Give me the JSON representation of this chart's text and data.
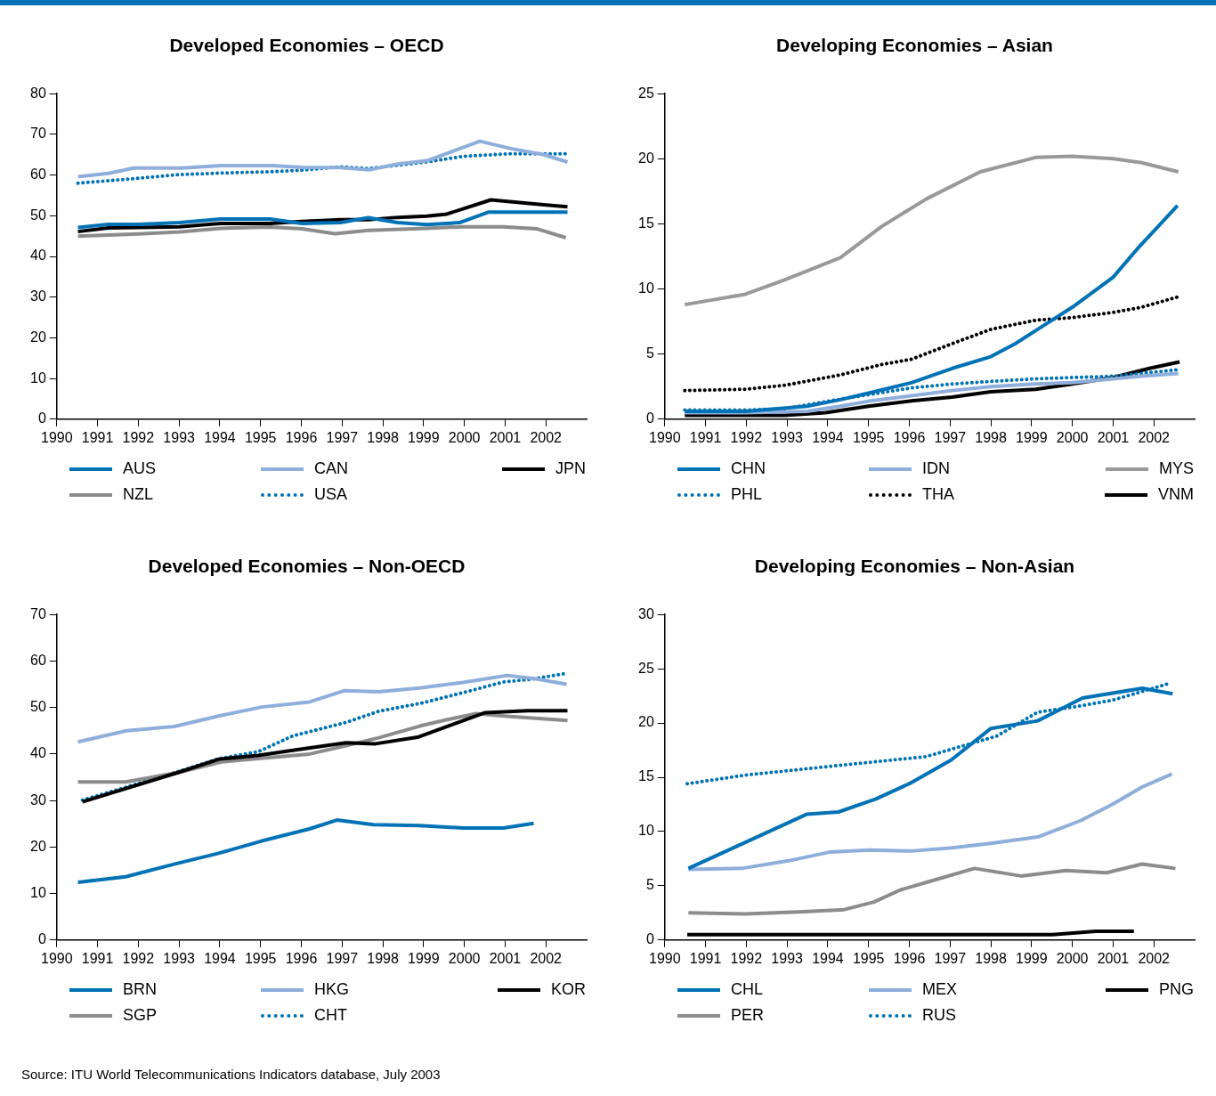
{
  "chart_data": [
    {
      "type": "line",
      "title": "Developed Economies – OECD",
      "xlim": [
        1990,
        2003
      ],
      "xticks": [
        1990,
        1991,
        1992,
        1993,
        1994,
        1995,
        1996,
        1997,
        1998,
        1999,
        2000,
        2001,
        2002
      ],
      "ylim": [
        0,
        80
      ],
      "yticks": [
        0,
        10,
        20,
        30,
        40,
        50,
        60,
        70,
        80
      ],
      "grid": false,
      "legend": "bottom",
      "marker": "none",
      "series": [
        {
          "name": "AUS",
          "color": "#0072b5",
          "line_style": "solid",
          "x": [
            1990.52,
            1991.26,
            1992.0,
            1993.01,
            1994.02,
            1995.23,
            1996.02,
            1996.96,
            1997.64,
            1998.36,
            1999.08,
            1999.88,
            2000.6,
            2002.53
          ],
          "values": [
            47.1,
            47.9,
            47.9,
            48.3,
            49.2,
            49.2,
            48.1,
            48.3,
            49.5,
            48.3,
            47.8,
            48.3,
            50.9,
            50.9
          ]
        },
        {
          "name": "CAN",
          "color": "#8eaedb",
          "line_style": "solid",
          "x": [
            1990.52,
            1991.26,
            1991.89,
            1993.06,
            1994.04,
            1995.3,
            1996.02,
            1996.96,
            1997.68,
            1998.36,
            1999.08,
            2000.38,
            2001.14,
            2001.95,
            2002.53
          ],
          "values": [
            59.6,
            60.4,
            61.7,
            61.7,
            62.3,
            62.3,
            61.9,
            61.8,
            61.3,
            62.7,
            63.5,
            68.3,
            66.5,
            65.0,
            63.2
          ]
        },
        {
          "name": "JPN",
          "color": "#000000",
          "line_style": "solid",
          "x": [
            1990.52,
            1991.26,
            1992.0,
            1993.01,
            1994.02,
            1995.23,
            1996.02,
            1996.96,
            1997.64,
            1998.36,
            1999.08,
            1999.57,
            2000.65,
            2001.95,
            2002.53
          ],
          "values": [
            46.1,
            47.0,
            47.1,
            47.3,
            48.1,
            48.1,
            48.6,
            49.0,
            49.0,
            49.6,
            49.9,
            50.4,
            53.9,
            52.7,
            52.2
          ]
        },
        {
          "name": "NZL",
          "color": "#8c8c8c",
          "line_style": "solid",
          "x": [
            1990.52,
            1992.0,
            1993.01,
            1994.02,
            1995.23,
            1996.02,
            1996.83,
            1997.64,
            1999.08,
            1999.97,
            2000.96,
            2001.77,
            2002.49
          ],
          "values": [
            45.0,
            45.5,
            46.0,
            46.9,
            47.2,
            46.8,
            45.6,
            46.4,
            46.9,
            47.3,
            47.3,
            46.8,
            44.6
          ]
        },
        {
          "name": "USA",
          "color": "#0072b5",
          "line_style": "dotted",
          "x": [
            1990.52,
            1992.0,
            1993.01,
            1994.02,
            1995.23,
            1996.02,
            1996.96,
            1997.64,
            1999.08,
            1999.97,
            2001.05,
            2002.53
          ],
          "values": [
            58.0,
            59.2,
            60.1,
            60.5,
            60.8,
            61.2,
            62.0,
            61.6,
            63.2,
            64.6,
            65.2,
            65.2
          ]
        }
      ]
    },
    {
      "type": "line",
      "title": "Developing Economies – Asian",
      "xlim": [
        1990,
        2003
      ],
      "xticks": [
        1990,
        1991,
        1992,
        1993,
        1994,
        1995,
        1996,
        1997,
        1998,
        1999,
        2000,
        2001,
        2002
      ],
      "ylim": [
        0,
        25
      ],
      "yticks": [
        0,
        5,
        10,
        15,
        20,
        25
      ],
      "grid": false,
      "legend": "bottom",
      "marker": "none",
      "series": [
        {
          "name": "CHN",
          "color": "#0072b5",
          "line_style": "solid",
          "x": [
            1990.49,
            1991.98,
            1993.49,
            1994.31,
            1995.0,
            1996.05,
            1997.05,
            1998.0,
            1998.6,
            1999.15,
            2000.0,
            2001.0,
            2001.6,
            2002.58
          ],
          "values": [
            0.6,
            0.6,
            1.0,
            1.5,
            2.0,
            2.8,
            3.9,
            4.8,
            5.8,
            6.9,
            8.6,
            10.9,
            13.1,
            16.4
          ]
        },
        {
          "name": "IDN",
          "color": "#8eaedb",
          "line_style": "solid",
          "x": [
            1990.49,
            1991.98,
            1993.49,
            1994.31,
            1995.05,
            1996.05,
            1997.05,
            1998.0,
            1999.1,
            2000.0,
            2001.0,
            2001.7,
            2002.6
          ],
          "values": [
            0.5,
            0.5,
            0.6,
            1.0,
            1.4,
            1.8,
            2.2,
            2.5,
            2.7,
            2.8,
            3.1,
            3.3,
            3.5
          ]
        },
        {
          "name": "MYS",
          "color": "#999999",
          "line_style": "solid",
          "x": [
            1990.49,
            1991.98,
            1992.94,
            1994.31,
            1995.32,
            1996.41,
            1997.74,
            1999.1,
            2000.0,
            2001.0,
            2001.7,
            2002.6
          ],
          "values": [
            8.8,
            9.6,
            10.7,
            12.4,
            14.8,
            16.9,
            19.0,
            20.1,
            20.2,
            20.0,
            19.7,
            19.0
          ]
        },
        {
          "name": "PHL",
          "color": "#0072b5",
          "line_style": "dotted",
          "x": [
            1990.49,
            1991.98,
            1992.94,
            1994.04,
            1995.04,
            1996.05,
            1997.05,
            1998.0,
            1999.1,
            2000.0,
            2001.0,
            2002.6
          ],
          "values": [
            0.7,
            0.7,
            0.8,
            1.4,
            1.9,
            2.4,
            2.7,
            2.9,
            3.1,
            3.2,
            3.3,
            3.8
          ]
        },
        {
          "name": "THA",
          "color": "#000000",
          "line_style": "dotted",
          "x": [
            1990.49,
            1991.98,
            1992.94,
            1994.31,
            1995.32,
            1996.05,
            1997.05,
            1998.0,
            1999.1,
            2000.0,
            2001.0,
            2001.7,
            2002.6
          ],
          "values": [
            2.2,
            2.3,
            2.6,
            3.4,
            4.2,
            4.6,
            5.8,
            6.9,
            7.6,
            7.8,
            8.2,
            8.6,
            9.4
          ]
        },
        {
          "name": "VNM",
          "color": "#000000",
          "line_style": "solid",
          "x": [
            1990.49,
            1992.94,
            1993.95,
            1995.0,
            1996.05,
            1997.05,
            1998.0,
            1999.1,
            2000.0,
            2001.0,
            2001.89,
            2002.63
          ],
          "values": [
            0.3,
            0.3,
            0.5,
            1.0,
            1.4,
            1.7,
            2.1,
            2.3,
            2.7,
            3.2,
            3.9,
            4.4
          ]
        }
      ]
    },
    {
      "type": "line",
      "title": "Developed Economies – Non-OECD",
      "xlim": [
        1990,
        2003
      ],
      "xticks": [
        1990,
        1991,
        1992,
        1993,
        1994,
        1995,
        1996,
        1997,
        1998,
        1999,
        2000,
        2001,
        2002
      ],
      "ylim": [
        0,
        70
      ],
      "yticks": [
        0,
        10,
        20,
        30,
        40,
        50,
        60,
        70
      ],
      "grid": false,
      "legend": "bottom",
      "marker": "none",
      "series": [
        {
          "name": "BRN",
          "color": "#0072b5",
          "line_style": "solid",
          "x": [
            1990.52,
            1991.69,
            1992.92,
            1993.95,
            1995.03,
            1996.2,
            1996.87,
            1997.77,
            1998.9,
            1999.97,
            2000.96,
            2001.7
          ],
          "values": [
            12.4,
            13.6,
            16.4,
            18.6,
            21.3,
            23.9,
            25.8,
            24.8,
            24.6,
            24.1,
            24.1,
            25.1
          ]
        },
        {
          "name": "HKG",
          "color": "#8eaedb",
          "line_style": "solid",
          "x": [
            1990.52,
            1991.71,
            1992.88,
            1994.04,
            1995.03,
            1996.2,
            1997.05,
            1997.9,
            1998.9,
            1999.97,
            2001.05,
            2001.73,
            2002.51
          ],
          "values": [
            42.6,
            45.0,
            45.9,
            48.3,
            50.1,
            51.2,
            53.6,
            53.4,
            54.2,
            55.4,
            56.9,
            56.2,
            55.0
          ]
        },
        {
          "name": "KOR",
          "color": "#000000",
          "line_style": "solid",
          "x": [
            1990.63,
            1992.97,
            1993.98,
            1994.94,
            1995.79,
            1997.1,
            1997.82,
            1998.85,
            1999.97,
            2000.51,
            2001.55,
            2002.53
          ],
          "values": [
            29.7,
            36.0,
            38.9,
            39.7,
            40.8,
            42.4,
            42.2,
            43.6,
            47.2,
            48.9,
            49.3,
            49.3
          ]
        },
        {
          "name": "SGP",
          "color": "#8c8c8c",
          "line_style": "solid",
          "x": [
            1990.52,
            1991.69,
            1992.97,
            1994.04,
            1994.94,
            1996.2,
            1997.1,
            1997.9,
            1998.9,
            1999.53,
            2000.29,
            2001.05,
            2002.53
          ],
          "values": [
            34.0,
            34.0,
            36.0,
            38.3,
            39.0,
            40.0,
            41.8,
            43.5,
            46.0,
            47.3,
            48.7,
            48.1,
            47.2
          ]
        },
        {
          "name": "CHT",
          "color": "#0072b5",
          "line_style": "dotted",
          "x": [
            1990.63,
            1991.71,
            1992.97,
            1993.98,
            1994.94,
            1995.79,
            1997.1,
            1997.9,
            1998.98,
            1999.97,
            2000.96,
            2001.59,
            2002.47
          ],
          "values": [
            30.1,
            32.9,
            36.2,
            39.0,
            40.5,
            43.9,
            46.8,
            49.2,
            51.0,
            53.2,
            55.5,
            56.0,
            57.3
          ]
        }
      ]
    },
    {
      "type": "line",
      "title": "Developing Economies – Non-Asian",
      "xlim": [
        1990,
        2003
      ],
      "xticks": [
        1990,
        1991,
        1992,
        1993,
        1994,
        1995,
        1996,
        1997,
        1998,
        1999,
        2000,
        2001,
        2002
      ],
      "ylim": [
        0,
        30
      ],
      "yticks": [
        0,
        5,
        10,
        15,
        20,
        25,
        30
      ],
      "grid": false,
      "legend": "bottom",
      "marker": "none",
      "annotations": [
        "Source: ITU World Telecommunications Indicators database, July 2003"
      ],
      "series": [
        {
          "name": "CHL",
          "color": "#0072b5",
          "line_style": "solid",
          "x": [
            1990.58,
            1993.49,
            1994.26,
            1995.18,
            1996.05,
            1997.03,
            1998.0,
            1999.15,
            2000.25,
            2001.71,
            2002.46
          ],
          "values": [
            6.6,
            11.6,
            11.8,
            13.0,
            14.5,
            16.6,
            19.5,
            20.2,
            22.3,
            23.2,
            22.7
          ]
        },
        {
          "name": "MEX",
          "color": "#8eaedb",
          "line_style": "solid",
          "x": [
            1990.58,
            1991.89,
            1993.03,
            1994.04,
            1995.04,
            1996.05,
            1997.05,
            1998.0,
            1999.15,
            2000.2,
            2000.98,
            2001.71,
            2002.44
          ],
          "values": [
            6.5,
            6.6,
            7.3,
            8.1,
            8.3,
            8.2,
            8.5,
            8.9,
            9.5,
            11.0,
            12.5,
            14.1,
            15.3
          ]
        },
        {
          "name": "PNG",
          "color": "#000000",
          "line_style": "solid",
          "x": [
            1990.55,
            1999.51,
            2000.57,
            2001.51
          ],
          "values": [
            0.5,
            0.5,
            0.8,
            0.8
          ]
        },
        {
          "name": "PER",
          "color": "#8c8c8c",
          "line_style": "solid",
          "x": [
            1990.58,
            1991.98,
            1993.4,
            1994.4,
            1995.13,
            1995.77,
            1996.59,
            1997.6,
            1998.74,
            1999.84,
            2000.84,
            2001.71,
            2002.53
          ],
          "values": [
            2.5,
            2.4,
            2.6,
            2.8,
            3.5,
            4.6,
            5.5,
            6.6,
            5.9,
            6.4,
            6.2,
            7.0,
            6.6
          ]
        },
        {
          "name": "RUS",
          "color": "#0072b5",
          "line_style": "dotted",
          "x": [
            1990.55,
            1991.98,
            1994.04,
            1996.41,
            1997.32,
            1998.15,
            1999.15,
            2000.07,
            2000.98,
            2001.71,
            2002.42
          ],
          "values": [
            14.4,
            15.2,
            16.0,
            16.9,
            17.9,
            18.8,
            21.0,
            21.5,
            22.1,
            22.9,
            23.7
          ]
        }
      ]
    }
  ]
}
